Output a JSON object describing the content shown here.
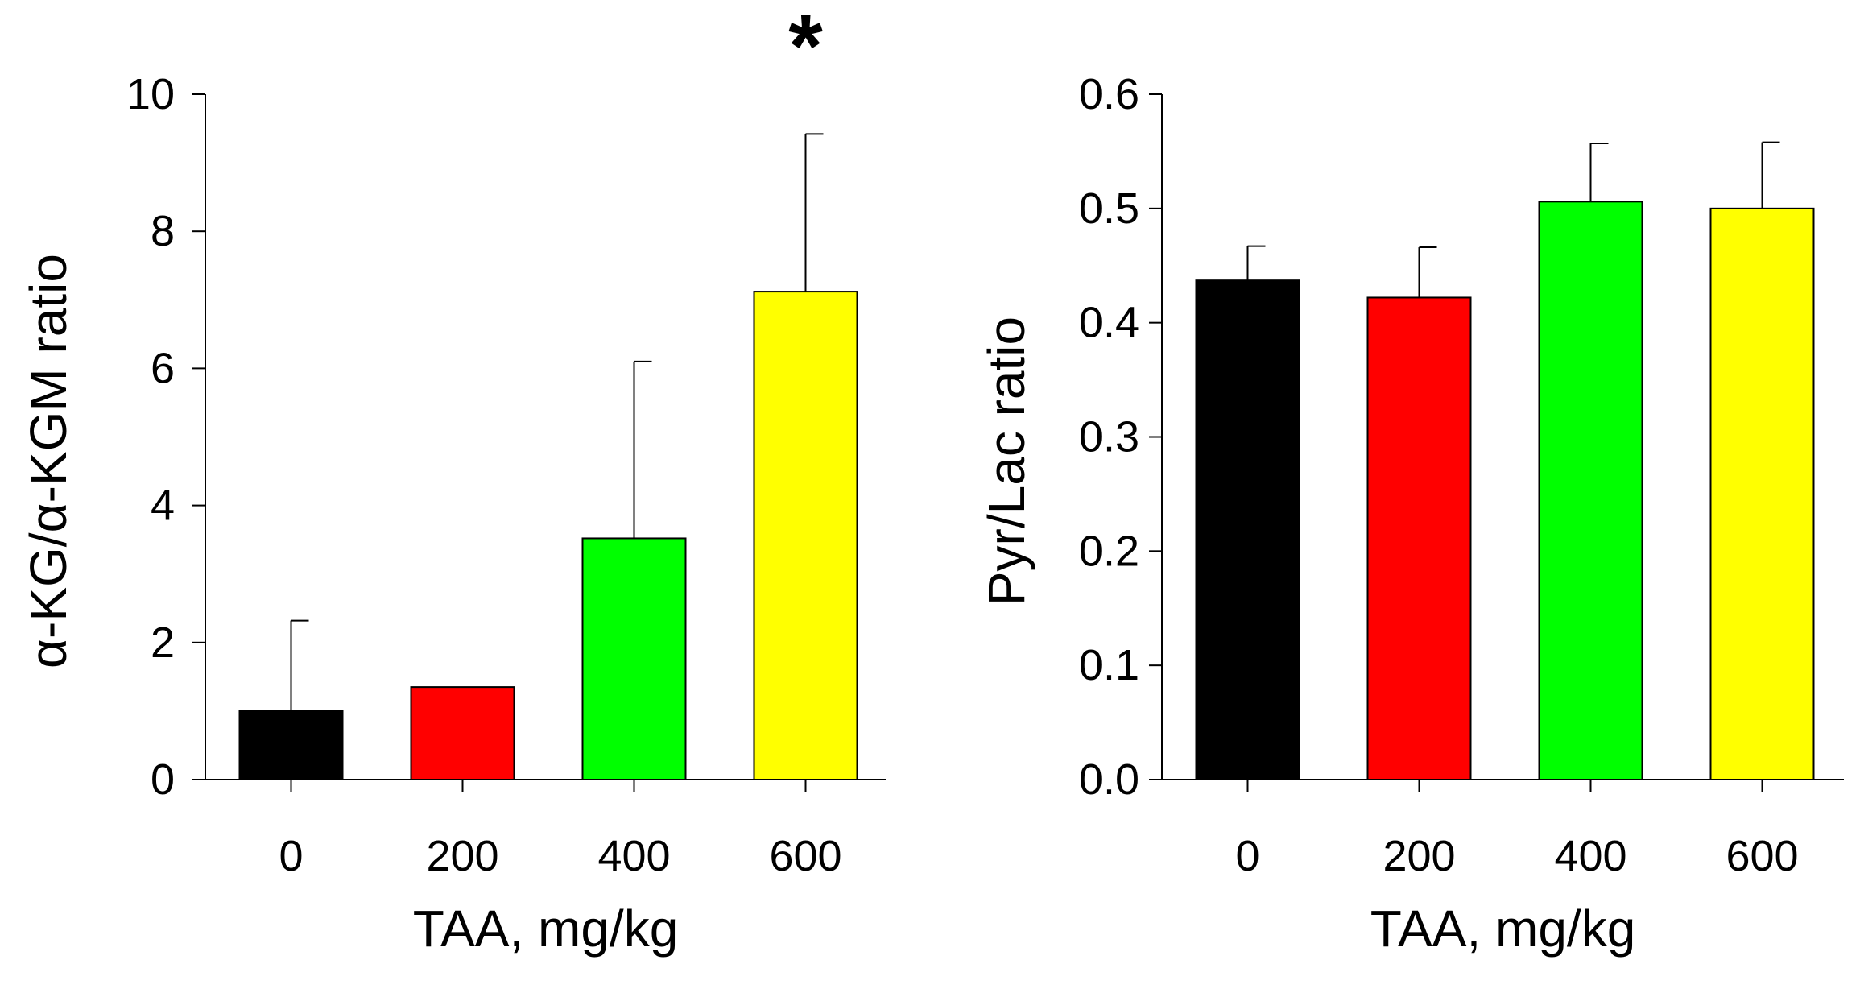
{
  "chart_data": [
    {
      "type": "bar",
      "title": "",
      "xlabel": "TAA, mg/kg",
      "ylabel": "α-KG/α-KGM ratio",
      "categories": [
        "0",
        "200",
        "400",
        "600"
      ],
      "values": [
        1.0,
        1.35,
        3.52,
        7.12
      ],
      "errors": [
        1.32,
        0,
        2.58,
        2.3
      ],
      "colors": [
        "#000000",
        "#ff0000",
        "#00ff00",
        "#ffff00"
      ],
      "ylim": [
        0,
        10
      ],
      "yticks": [
        "0",
        "2",
        "4",
        "6",
        "8",
        "10"
      ],
      "ytick_values": [
        0,
        2,
        4,
        6,
        8,
        10
      ],
      "annotations": [
        {
          "category": "600",
          "text": "*"
        }
      ],
      "grid": false
    },
    {
      "type": "bar",
      "title": "",
      "xlabel": "TAA, mg/kg",
      "ylabel": "Pyr/Lac ratio",
      "categories": [
        "0",
        "200",
        "400",
        "600"
      ],
      "values": [
        0.437,
        0.422,
        0.506,
        0.5
      ],
      "errors": [
        0.03,
        0.044,
        0.051,
        0.058
      ],
      "colors": [
        "#000000",
        "#ff0000",
        "#00ff00",
        "#ffff00"
      ],
      "ylim": [
        0,
        0.6
      ],
      "yticks": [
        "0.0",
        "0.1",
        "0.2",
        "0.3",
        "0.4",
        "0.5",
        "0.6"
      ],
      "ytick_values": [
        0,
        0.1,
        0.2,
        0.3,
        0.4,
        0.5,
        0.6
      ],
      "annotations": [],
      "grid": false
    }
  ]
}
